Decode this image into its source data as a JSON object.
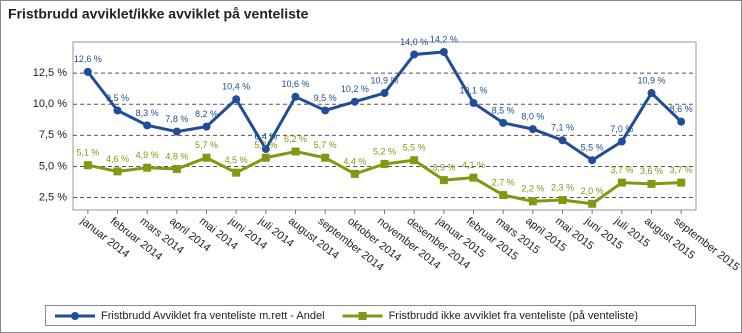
{
  "chart_data": {
    "type": "line",
    "title": "Fristbrudd avviklet/ikke avviklet på venteliste",
    "categories": [
      "januar 2014",
      "februar 2014",
      "mars 2014",
      "april 2014",
      "mai 2014",
      "juni 2014",
      "juli 2014",
      "august 2014",
      "september 2014",
      "oktober 2014",
      "november 2014",
      "desember 2014",
      "januar 2015",
      "februar 2015",
      "mars 2015",
      "april 2015",
      "mai 2015",
      "juni 2015",
      "juli 2015",
      "august 2015",
      "september 2015"
    ],
    "series": [
      {
        "name": "Fristbrudd Avviklet fra venteliste m.rett - Andel",
        "color": "#1f4e96",
        "marker": "circle",
        "values": [
          12.6,
          9.5,
          8.3,
          7.8,
          8.2,
          10.4,
          6.4,
          10.6,
          9.5,
          10.2,
          10.9,
          14.0,
          14.2,
          10.1,
          8.5,
          8.0,
          7.1,
          5.5,
          7.0,
          10.9,
          8.6
        ],
        "value_labels": [
          "12,6 %",
          "9,5 %",
          "8,3 %",
          "7,8 %",
          "8,2 %",
          "10,4 %",
          "6,4 %",
          "10,6 %",
          "9,5 %",
          "10,2 %",
          "10,9 %",
          "14,0 %",
          "14,2 %",
          "10,1 %",
          "8,5 %",
          "8,0 %",
          "7,1 %",
          "5,5 %",
          "7,0 %",
          "10,9 %",
          "8,6 %"
        ]
      },
      {
        "name": "Fristbrudd ikke avviklet fra venteliste (på venteliste)",
        "color": "#7f9a12",
        "marker": "square",
        "values": [
          5.1,
          4.6,
          4.9,
          4.8,
          5.7,
          4.5,
          5.7,
          6.2,
          5.7,
          4.4,
          5.2,
          5.5,
          3.9,
          4.1,
          2.7,
          2.2,
          2.3,
          2.0,
          3.7,
          3.6,
          3.7
        ],
        "value_labels": [
          "5,1 %",
          "4,6 %",
          "4,9 %",
          "4,8 %",
          "5,7 %",
          "4,5 %",
          "5,7 %",
          "6,2 %",
          "5,7 %",
          "4,4 %",
          "5,2 %",
          "5,5 %",
          "3,9 %",
          "4,1 %",
          "2,7 %",
          "2,2 %",
          "2,3 %",
          "2,0 %",
          "3,7 %",
          "3,6 %",
          "3,7 %"
        ]
      }
    ],
    "ylim": [
      1.5,
      15
    ],
    "yticks": [
      {
        "value": 2.5,
        "label": "2,5 %"
      },
      {
        "value": 5,
        "label": "5,0 %"
      },
      {
        "value": 7.5,
        "label": "7,5 %"
      },
      {
        "value": 10,
        "label": "10,0 %"
      },
      {
        "value": 12.5,
        "label": "12,5 %"
      }
    ],
    "grid": true,
    "legend": "bottom"
  }
}
